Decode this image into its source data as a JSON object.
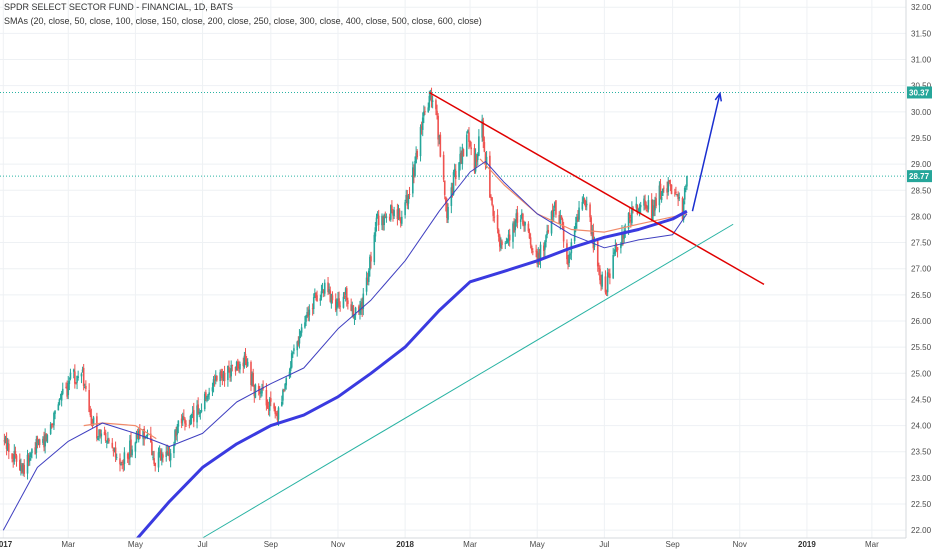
{
  "header": {
    "title": "SPDR SELECT SECTOR FUND - FINANCIAL, 1D, BATS",
    "indicators": "SMAs (20, close, 50, close, 100, close, 150, close, 200, close, 250, close, 300, close, 400, close, 500, close, 600, close)"
  },
  "colors": {
    "up": "#26a69a",
    "down": "#ef5350",
    "sma50": "#3f3fc0",
    "sma100": "#f08a6a",
    "sma200": "#3a3ae0",
    "resistance": "#e00000",
    "support": "#29b3a3",
    "projection": "#1a2fd0",
    "price_tag": "#26a69a",
    "grid": "#eef1f4"
  },
  "chart_data": {
    "type": "candlestick",
    "symbol": "SPDR SELECT SECTOR FUND - FINANCIAL",
    "interval": "1D",
    "exchange": "BATS",
    "ylim": [
      21.85,
      32.1
    ],
    "y_ticks": [
      "32.00",
      "31.50",
      "31.00",
      "30.50",
      "30.00",
      "29.50",
      "29.00",
      "28.50",
      "28.00",
      "27.50",
      "27.00",
      "26.50",
      "26.00",
      "25.50",
      "25.00",
      "24.50",
      "24.00",
      "23.50",
      "23.00",
      "22.50",
      "22.00"
    ],
    "x_range": [
      "2016-12-29",
      "2019-04-01"
    ],
    "x_ticks": [
      {
        "label": "2017",
        "date": "2017-01-01",
        "bold": true
      },
      {
        "label": "Mar",
        "date": "2017-03-01",
        "bold": false
      },
      {
        "label": "May",
        "date": "2017-05-01",
        "bold": false
      },
      {
        "label": "Jul",
        "date": "2017-07-01",
        "bold": false
      },
      {
        "label": "Sep",
        "date": "2017-09-01",
        "bold": false
      },
      {
        "label": "Nov",
        "date": "2017-11-01",
        "bold": false
      },
      {
        "label": "2018",
        "date": "2018-01-01",
        "bold": true
      },
      {
        "label": "Mar",
        "date": "2018-03-01",
        "bold": false
      },
      {
        "label": "May",
        "date": "2018-05-01",
        "bold": false
      },
      {
        "label": "Jul",
        "date": "2018-07-01",
        "bold": false
      },
      {
        "label": "Sep",
        "date": "2018-09-01",
        "bold": false
      },
      {
        "label": "Nov",
        "date": "2018-11-01",
        "bold": false
      },
      {
        "label": "2019",
        "date": "2019-01-01",
        "bold": true
      },
      {
        "label": "Mar",
        "date": "2019-03-01",
        "bold": false
      }
    ],
    "price_path": [
      [
        "2017-01-01",
        23.7
      ],
      [
        "2017-01-10",
        23.45
      ],
      [
        "2017-01-20",
        23.2
      ],
      [
        "2017-01-31",
        23.6
      ],
      [
        "2017-02-10",
        23.8
      ],
      [
        "2017-02-20",
        24.5
      ],
      [
        "2017-02-28",
        24.7
      ],
      [
        "2017-03-03",
        25.15
      ],
      [
        "2017-03-08",
        24.85
      ],
      [
        "2017-03-14",
        24.95
      ],
      [
        "2017-03-21",
        24.1
      ],
      [
        "2017-03-30",
        23.8
      ],
      [
        "2017-04-10",
        23.5
      ],
      [
        "2017-04-18",
        23.2
      ],
      [
        "2017-04-28",
        23.65
      ],
      [
        "2017-05-10",
        23.9
      ],
      [
        "2017-05-18",
        23.35
      ],
      [
        "2017-05-31",
        23.4
      ],
      [
        "2017-06-10",
        24.0
      ],
      [
        "2017-06-20",
        24.1
      ],
      [
        "2017-06-30",
        24.4
      ],
      [
        "2017-07-10",
        24.8
      ],
      [
        "2017-07-20",
        25.0
      ],
      [
        "2017-07-31",
        25.1
      ],
      [
        "2017-08-10",
        25.2
      ],
      [
        "2017-08-17",
        24.7
      ],
      [
        "2017-08-28",
        24.5
      ],
      [
        "2017-09-07",
        24.1
      ],
      [
        "2017-09-14",
        24.7
      ],
      [
        "2017-09-21",
        25.4
      ],
      [
        "2017-09-29",
        25.85
      ],
      [
        "2017-10-10",
        26.4
      ],
      [
        "2017-10-20",
        26.6
      ],
      [
        "2017-10-31",
        26.3
      ],
      [
        "2017-11-08",
        26.5
      ],
      [
        "2017-11-15",
        26.1
      ],
      [
        "2017-11-22",
        26.2
      ],
      [
        "2017-11-30",
        27.1
      ],
      [
        "2017-12-05",
        27.9
      ],
      [
        "2017-12-12",
        28.0
      ],
      [
        "2017-12-20",
        28.1
      ],
      [
        "2017-12-29",
        27.95
      ],
      [
        "2018-01-05",
        28.5
      ],
      [
        "2018-01-12",
        29.2
      ],
      [
        "2018-01-18",
        29.9
      ],
      [
        "2018-01-24",
        30.25
      ],
      [
        "2018-01-29",
        30.0
      ],
      [
        "2018-02-02",
        29.2
      ],
      [
        "2018-02-08",
        28.1
      ],
      [
        "2018-02-14",
        28.7
      ],
      [
        "2018-02-22",
        29.2
      ],
      [
        "2018-02-27",
        29.6
      ],
      [
        "2018-03-05",
        29.0
      ],
      [
        "2018-03-12",
        29.7
      ],
      [
        "2018-03-16",
        29.0
      ],
      [
        "2018-03-22",
        27.9
      ],
      [
        "2018-03-28",
        27.5
      ],
      [
        "2018-04-05",
        27.6
      ],
      [
        "2018-04-12",
        27.9
      ],
      [
        "2018-04-18",
        28.0
      ],
      [
        "2018-04-25",
        27.5
      ],
      [
        "2018-05-02",
        27.2
      ],
      [
        "2018-05-09",
        27.6
      ],
      [
        "2018-05-16",
        28.2
      ],
      [
        "2018-05-23",
        27.9
      ],
      [
        "2018-05-29",
        27.2
      ],
      [
        "2018-06-06",
        28.0
      ],
      [
        "2018-06-12",
        28.3
      ],
      [
        "2018-06-19",
        27.8
      ],
      [
        "2018-06-26",
        26.9
      ],
      [
        "2018-07-02",
        26.6
      ],
      [
        "2018-07-09",
        27.2
      ],
      [
        "2018-07-16",
        27.6
      ],
      [
        "2018-07-23",
        28.0
      ],
      [
        "2018-07-30",
        28.1
      ],
      [
        "2018-08-06",
        28.35
      ],
      [
        "2018-08-13",
        28.05
      ],
      [
        "2018-08-20",
        28.45
      ],
      [
        "2018-08-27",
        28.6
      ],
      [
        "2018-09-04",
        28.35
      ],
      [
        "2018-09-10",
        28.1
      ],
      [
        "2018-09-14",
        28.77
      ]
    ],
    "sma50": [
      [
        "2017-01-01",
        22.0
      ],
      [
        "2017-02-01",
        23.2
      ],
      [
        "2017-03-01",
        23.7
      ],
      [
        "2017-04-01",
        24.05
      ],
      [
        "2017-05-01",
        23.85
      ],
      [
        "2017-06-01",
        23.6
      ],
      [
        "2017-07-01",
        23.85
      ],
      [
        "2017-08-01",
        24.45
      ],
      [
        "2017-09-01",
        24.8
      ],
      [
        "2017-10-01",
        25.1
      ],
      [
        "2017-11-01",
        25.85
      ],
      [
        "2017-12-01",
        26.4
      ],
      [
        "2018-01-01",
        27.15
      ],
      [
        "2018-02-01",
        28.1
      ],
      [
        "2018-03-01",
        28.85
      ],
      [
        "2018-03-15",
        29.05
      ],
      [
        "2018-04-01",
        28.65
      ],
      [
        "2018-05-01",
        28.05
      ],
      [
        "2018-06-01",
        27.65
      ],
      [
        "2018-07-01",
        27.4
      ],
      [
        "2018-08-01",
        27.55
      ],
      [
        "2018-09-01",
        27.65
      ],
      [
        "2018-09-14",
        28.05
      ]
    ],
    "sma100": [
      [
        "2017-03-15",
        24.0
      ],
      [
        "2017-04-01",
        24.05
      ],
      [
        "2017-05-01",
        24.0
      ],
      [
        "2017-05-20",
        23.75
      ],
      [
        "2018-03-10",
        29.1
      ],
      [
        "2018-04-01",
        28.6
      ],
      [
        "2018-05-01",
        28.05
      ],
      [
        "2018-06-01",
        27.75
      ],
      [
        "2018-07-01",
        27.7
      ],
      [
        "2018-08-01",
        27.85
      ],
      [
        "2018-09-14",
        28.05
      ]
    ],
    "sma200": [
      [
        "2017-05-01",
        21.8
      ],
      [
        "2017-06-01",
        22.55
      ],
      [
        "2017-07-01",
        23.2
      ],
      [
        "2017-08-01",
        23.65
      ],
      [
        "2017-09-01",
        24.0
      ],
      [
        "2017-10-01",
        24.2
      ],
      [
        "2017-11-01",
        24.55
      ],
      [
        "2017-12-01",
        25.0
      ],
      [
        "2018-01-01",
        25.5
      ],
      [
        "2018-02-01",
        26.2
      ],
      [
        "2018-03-01",
        26.75
      ],
      [
        "2018-04-01",
        26.95
      ],
      [
        "2018-05-01",
        27.15
      ],
      [
        "2018-06-01",
        27.4
      ],
      [
        "2018-07-01",
        27.6
      ],
      [
        "2018-08-01",
        27.75
      ],
      [
        "2018-09-01",
        27.95
      ],
      [
        "2018-09-14",
        28.1
      ]
    ],
    "trendlines": [
      {
        "kind": "resistance",
        "from": [
          "2018-01-23",
          30.37
        ],
        "to": [
          "2018-11-23",
          26.7
        ]
      },
      {
        "kind": "support",
        "from": [
          "2017-07-01",
          21.85
        ],
        "to": [
          "2018-10-26",
          27.85
        ]
      },
      {
        "kind": "projection",
        "from": [
          "2018-09-19",
          28.1
        ],
        "to": [
          "2018-10-14",
          30.35
        ]
      }
    ],
    "horizontal_lines": [
      {
        "value": 30.37,
        "label": "30.37"
      },
      {
        "value": 28.77,
        "label": "28.77"
      }
    ]
  }
}
